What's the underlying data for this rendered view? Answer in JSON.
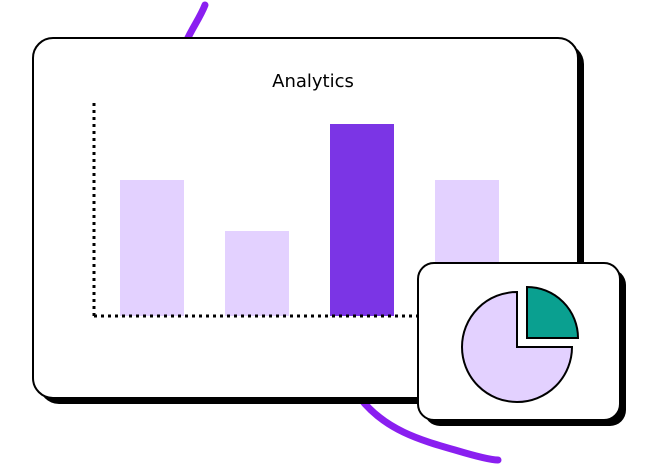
{
  "card": {
    "title": "Analytics"
  }
}
